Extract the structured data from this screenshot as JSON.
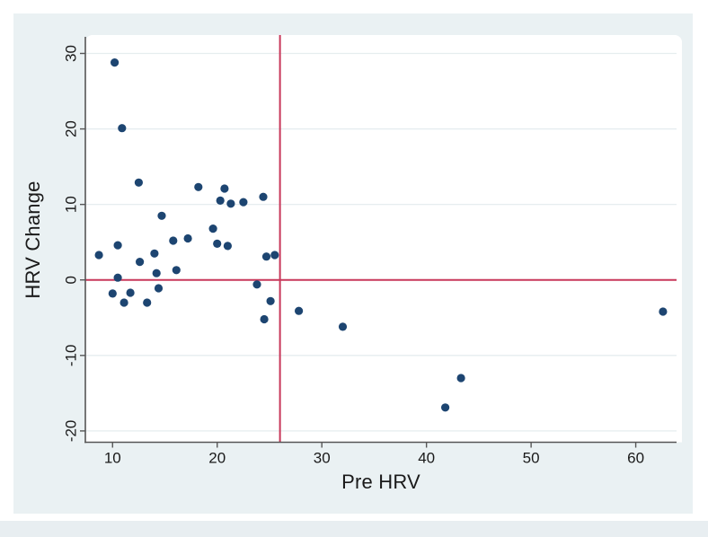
{
  "chart_data": {
    "type": "scatter",
    "title": "",
    "xlabel": "Pre HRV",
    "ylabel": "HRV Change",
    "xlim": [
      7.4,
      63.9
    ],
    "ylim": [
      -21.5,
      32.2
    ],
    "x_ticks": [
      10,
      20,
      30,
      40,
      50,
      60
    ],
    "y_ticks": [
      -20,
      -10,
      0,
      10,
      20,
      30
    ],
    "grid": "horizontal-only",
    "legend": "none",
    "ref_lines": {
      "vertical_x": 26,
      "horizontal_y": 0
    },
    "points": [
      [
        10.2,
        28.8
      ],
      [
        10.9,
        20.1
      ],
      [
        12.5,
        12.9
      ],
      [
        18.2,
        12.3
      ],
      [
        20.7,
        12.1
      ],
      [
        24.4,
        11.0
      ],
      [
        20.3,
        10.5
      ],
      [
        22.5,
        10.3
      ],
      [
        21.3,
        10.1
      ],
      [
        14.7,
        8.5
      ],
      [
        19.6,
        6.8
      ],
      [
        17.2,
        5.5
      ],
      [
        15.8,
        5.2
      ],
      [
        20.0,
        4.8
      ],
      [
        10.5,
        4.6
      ],
      [
        21.0,
        4.5
      ],
      [
        14.0,
        3.5
      ],
      [
        8.7,
        3.3
      ],
      [
        25.5,
        3.3
      ],
      [
        24.7,
        3.1
      ],
      [
        12.6,
        2.4
      ],
      [
        16.1,
        1.3
      ],
      [
        14.2,
        0.9
      ],
      [
        10.5,
        0.3
      ],
      [
        23.8,
        -0.6
      ],
      [
        14.4,
        -1.1
      ],
      [
        11.7,
        -1.7
      ],
      [
        10.0,
        -1.8
      ],
      [
        25.1,
        -2.8
      ],
      [
        11.1,
        -3.0
      ],
      [
        13.3,
        -3.0
      ],
      [
        27.8,
        -4.1
      ],
      [
        62.6,
        -4.2
      ],
      [
        24.5,
        -5.2
      ],
      [
        32.0,
        -6.2
      ],
      [
        41.8,
        -16.9
      ],
      [
        43.3,
        -13.0
      ]
    ],
    "colors": {
      "marker": "#1d4571",
      "ref_line": "#c8385a",
      "grid_line": "#e6edef",
      "axis_line": "#565656",
      "tick_text": "#1a1a1a",
      "plot_bg": "#ffffff",
      "graph_bg": "#eaf1f3",
      "bottom_strip": "#e8eef1",
      "page_bg": "#ffffff"
    },
    "marker_radius": 4.6,
    "tick_font_size": 17,
    "title_font_size": 22
  },
  "layout_note_visible_text_only": {
    "x_axis_title": "Pre HRV",
    "y_axis_title": "HRV Change",
    "x_tick_labels": [
      "10",
      "20",
      "30",
      "40",
      "50",
      "60"
    ],
    "y_tick_labels": [
      "-20",
      "-10",
      "0",
      "10",
      "20",
      "30"
    ]
  }
}
